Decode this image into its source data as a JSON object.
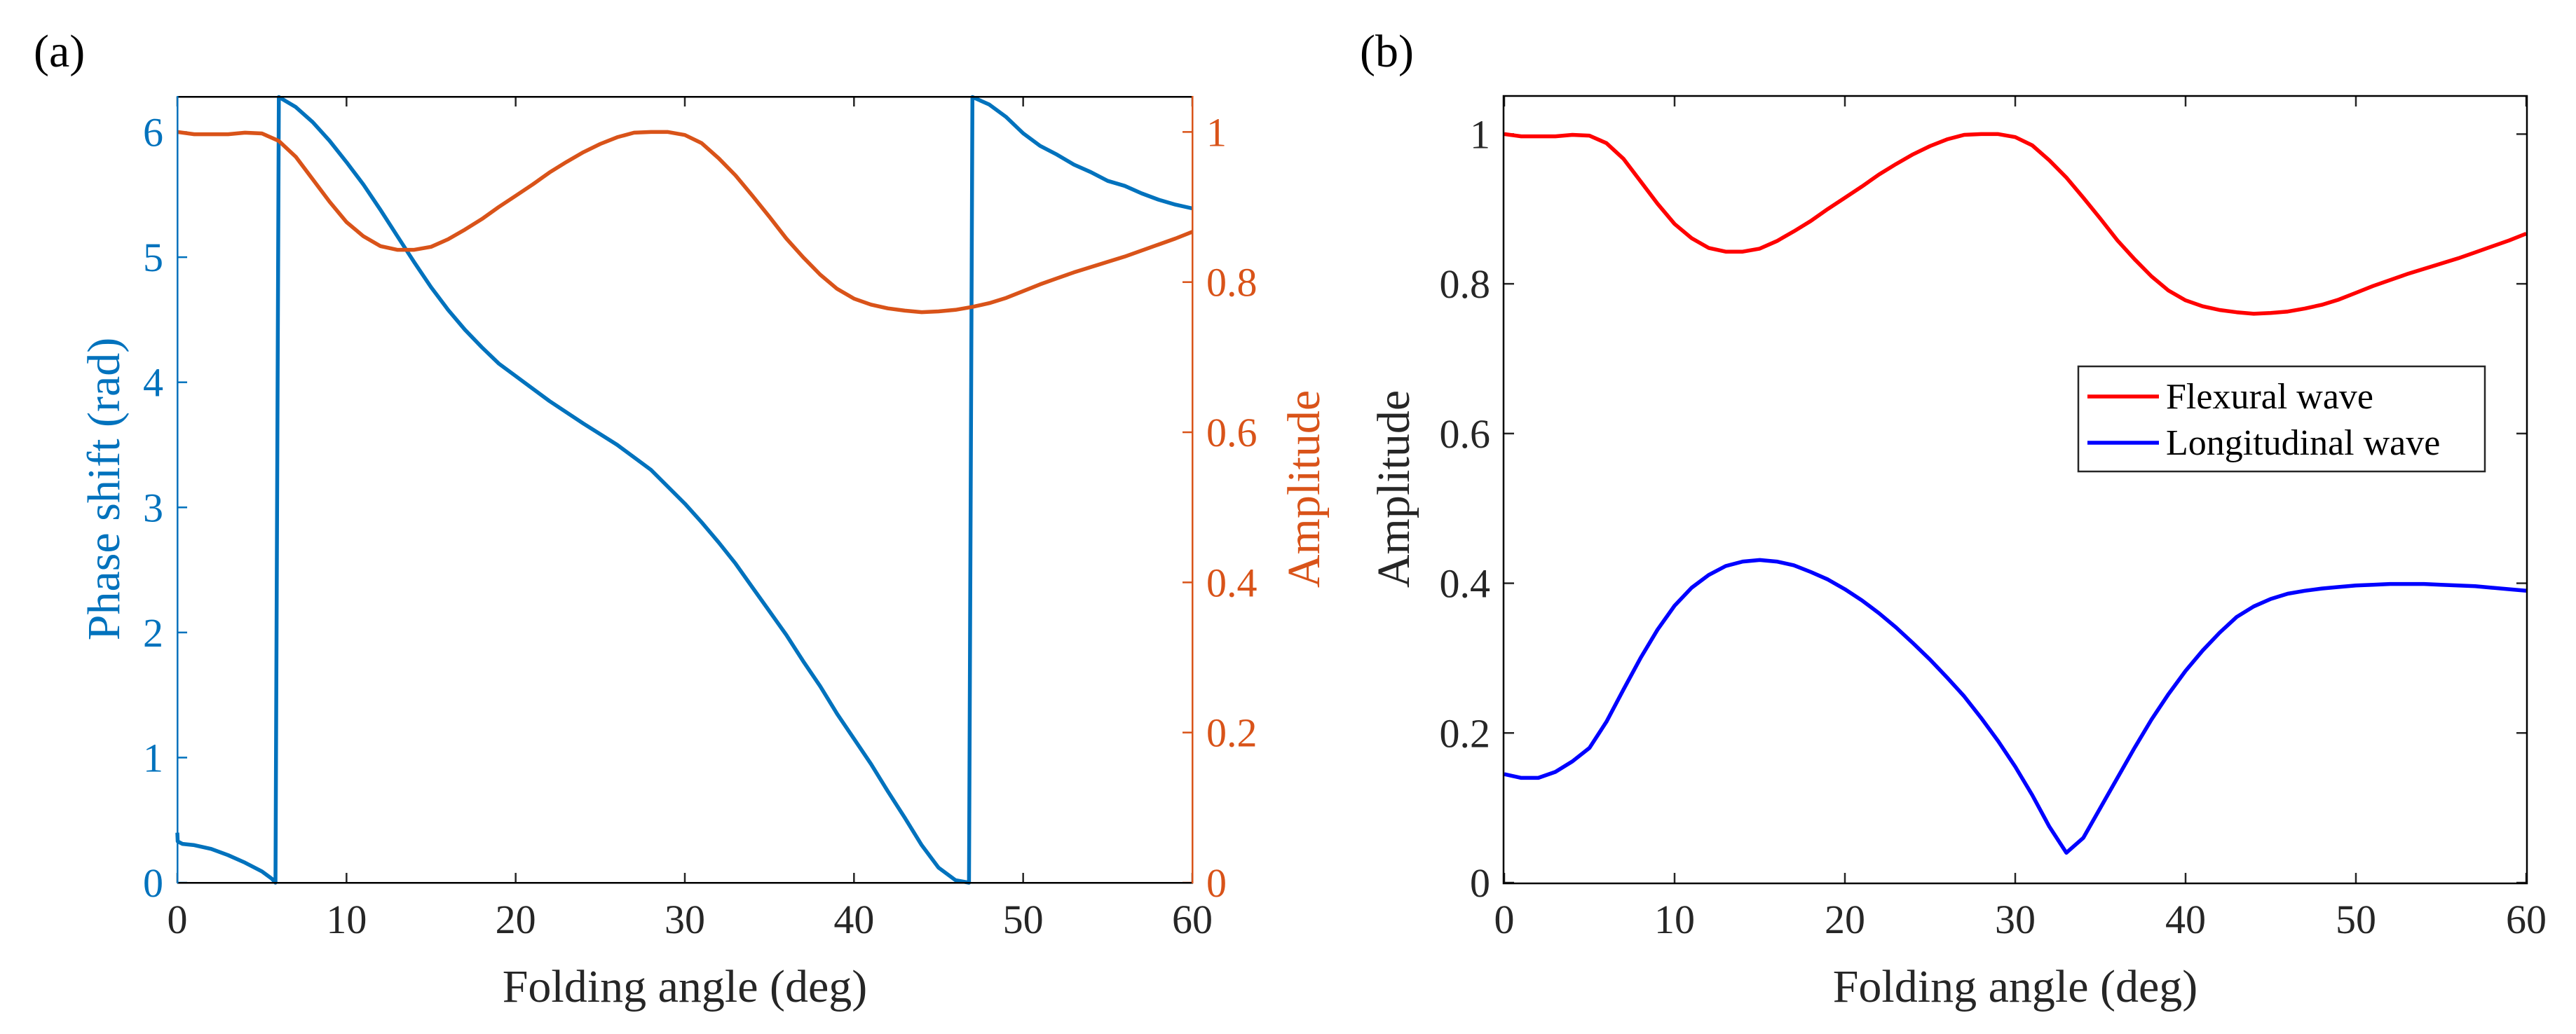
{
  "figure": {
    "background": "#ffffff"
  },
  "chart_data": [
    {
      "panel_label": "(a)",
      "type": "line",
      "title": "",
      "xlabel": "Folding angle (deg)",
      "ylabel_left": "Phase shift (rad)",
      "ylabel_right": "Amplitude",
      "xlim": [
        0,
        60
      ],
      "ylim_left": [
        0,
        6.283
      ],
      "ylim_right": [
        0,
        1.047
      ],
      "xticks": [
        0,
        10,
        20,
        30,
        40,
        50,
        60
      ],
      "yticks_left": [
        0,
        1,
        2,
        3,
        4,
        5,
        6
      ],
      "yticks_right": [
        0,
        0.2,
        0.4,
        0.6,
        0.8,
        1
      ],
      "grid": false,
      "colors": {
        "left_axis": "#0072BD",
        "right_axis": "#D95319",
        "box": "#000000"
      },
      "series": [
        {
          "name": "Phase shift",
          "axis": "left",
          "color": "#0072BD",
          "x": [
            0,
            0.02,
            0.3,
            1,
            2,
            3,
            4,
            5,
            5.6,
            5.8,
            6.0,
            7,
            8,
            9,
            10,
            11,
            12,
            13,
            14,
            15,
            16,
            17,
            18,
            19,
            20,
            22,
            24,
            26,
            28,
            30,
            31,
            32,
            33,
            34,
            35,
            36,
            37,
            38,
            39,
            40,
            41,
            42,
            43,
            44,
            45,
            46,
            46.8,
            47.0,
            48,
            49,
            50,
            51,
            52,
            53,
            54,
            55,
            56,
            57,
            58,
            59,
            60
          ],
          "y": [
            0.4,
            0.33,
            0.31,
            0.3,
            0.27,
            0.22,
            0.16,
            0.09,
            0.03,
            0.0,
            6.28,
            6.2,
            6.08,
            5.93,
            5.76,
            5.58,
            5.38,
            5.17,
            4.96,
            4.76,
            4.58,
            4.42,
            4.28,
            4.15,
            4.05,
            3.85,
            3.67,
            3.5,
            3.3,
            3.03,
            2.88,
            2.72,
            2.55,
            2.36,
            2.17,
            1.98,
            1.77,
            1.57,
            1.35,
            1.15,
            0.95,
            0.73,
            0.52,
            0.3,
            0.12,
            0.02,
            0.0,
            6.28,
            6.22,
            6.12,
            5.99,
            5.89,
            5.82,
            5.74,
            5.68,
            5.61,
            5.57,
            5.51,
            5.46,
            5.42,
            5.39
          ]
        },
        {
          "name": "Amplitude",
          "axis": "right",
          "color": "#D95319",
          "x": [
            0,
            1,
            2,
            3,
            4,
            5,
            6,
            7,
            8,
            9,
            10,
            11,
            12,
            13,
            14,
            15,
            16,
            17,
            18,
            19,
            20,
            21,
            22,
            23,
            24,
            25,
            26,
            27,
            28,
            29,
            30,
            31,
            32,
            33,
            34,
            35,
            36,
            37,
            38,
            39,
            40,
            41,
            42,
            43,
            44,
            45,
            46,
            47,
            48,
            49,
            50,
            51,
            52,
            53,
            54,
            55,
            56,
            57,
            58,
            59,
            60
          ],
          "y": [
            1.0,
            0.997,
            0.997,
            0.997,
            0.999,
            0.998,
            0.988,
            0.967,
            0.937,
            0.907,
            0.88,
            0.861,
            0.848,
            0.843,
            0.843,
            0.847,
            0.857,
            0.87,
            0.884,
            0.9,
            0.915,
            0.93,
            0.946,
            0.96,
            0.973,
            0.984,
            0.993,
            0.999,
            1.0,
            1.0,
            0.996,
            0.985,
            0.965,
            0.942,
            0.915,
            0.887,
            0.858,
            0.833,
            0.81,
            0.791,
            0.778,
            0.77,
            0.765,
            0.762,
            0.76,
            0.761,
            0.763,
            0.767,
            0.772,
            0.779,
            0.788,
            0.797,
            0.805,
            0.813,
            0.82,
            0.827,
            0.834,
            0.842,
            0.85,
            0.858,
            0.867
          ]
        }
      ]
    },
    {
      "panel_label": "(b)",
      "type": "line",
      "title": "",
      "xlabel": "Folding angle (deg)",
      "ylabel": "Amplitude",
      "xlim": [
        0,
        60
      ],
      "ylim": [
        0,
        1.05
      ],
      "xticks": [
        0,
        10,
        20,
        30,
        40,
        50,
        60
      ],
      "yticks": [
        0,
        0.2,
        0.4,
        0.6,
        0.8,
        1
      ],
      "grid": false,
      "legend": {
        "location": "center-right",
        "entries": [
          "Flexural wave",
          "Longitudinal wave"
        ]
      },
      "series": [
        {
          "name": "Flexural wave",
          "color": "#FF0000",
          "x": [
            0,
            1,
            2,
            3,
            4,
            5,
            6,
            7,
            8,
            9,
            10,
            11,
            12,
            13,
            14,
            15,
            16,
            17,
            18,
            19,
            20,
            21,
            22,
            23,
            24,
            25,
            26,
            27,
            28,
            29,
            30,
            31,
            32,
            33,
            34,
            35,
            36,
            37,
            38,
            39,
            40,
            41,
            42,
            43,
            44,
            45,
            46,
            47,
            48,
            49,
            50,
            51,
            52,
            53,
            54,
            55,
            56,
            57,
            58,
            59,
            60
          ],
          "y": [
            1.0,
            0.997,
            0.997,
            0.997,
            0.999,
            0.998,
            0.988,
            0.967,
            0.937,
            0.907,
            0.88,
            0.861,
            0.848,
            0.843,
            0.843,
            0.847,
            0.857,
            0.87,
            0.884,
            0.9,
            0.915,
            0.93,
            0.946,
            0.96,
            0.973,
            0.984,
            0.993,
            0.999,
            1.0,
            1.0,
            0.996,
            0.985,
            0.965,
            0.942,
            0.915,
            0.887,
            0.858,
            0.833,
            0.81,
            0.791,
            0.778,
            0.77,
            0.765,
            0.762,
            0.76,
            0.761,
            0.763,
            0.767,
            0.772,
            0.779,
            0.788,
            0.797,
            0.805,
            0.813,
            0.82,
            0.827,
            0.834,
            0.842,
            0.85,
            0.858,
            0.867
          ]
        },
        {
          "name": "Longitudinal wave",
          "color": "#0000FF",
          "x": [
            0,
            1,
            2,
            3,
            4,
            5,
            6,
            7,
            8,
            9,
            10,
            11,
            12,
            13,
            14,
            15,
            16,
            17,
            18,
            19,
            20,
            21,
            22,
            23,
            24,
            25,
            26,
            27,
            28,
            29,
            30,
            31,
            32,
            33,
            34,
            35,
            36,
            37,
            38,
            39,
            40,
            41,
            42,
            43,
            44,
            45,
            46,
            47,
            48,
            49,
            50,
            51,
            52,
            53,
            54,
            55,
            56,
            57,
            58,
            59,
            60
          ],
          "y": [
            0.145,
            0.14,
            0.14,
            0.148,
            0.162,
            0.18,
            0.215,
            0.258,
            0.3,
            0.338,
            0.37,
            0.394,
            0.411,
            0.423,
            0.429,
            0.431,
            0.429,
            0.424,
            0.415,
            0.405,
            0.392,
            0.377,
            0.36,
            0.341,
            0.32,
            0.298,
            0.274,
            0.249,
            0.22,
            0.189,
            0.155,
            0.117,
            0.075,
            0.04,
            0.06,
            0.1,
            0.14,
            0.18,
            0.218,
            0.252,
            0.283,
            0.31,
            0.334,
            0.355,
            0.369,
            0.379,
            0.386,
            0.39,
            0.393,
            0.395,
            0.397,
            0.398,
            0.399,
            0.399,
            0.399,
            0.398,
            0.397,
            0.396,
            0.394,
            0.392,
            0.39
          ]
        }
      ]
    }
  ]
}
